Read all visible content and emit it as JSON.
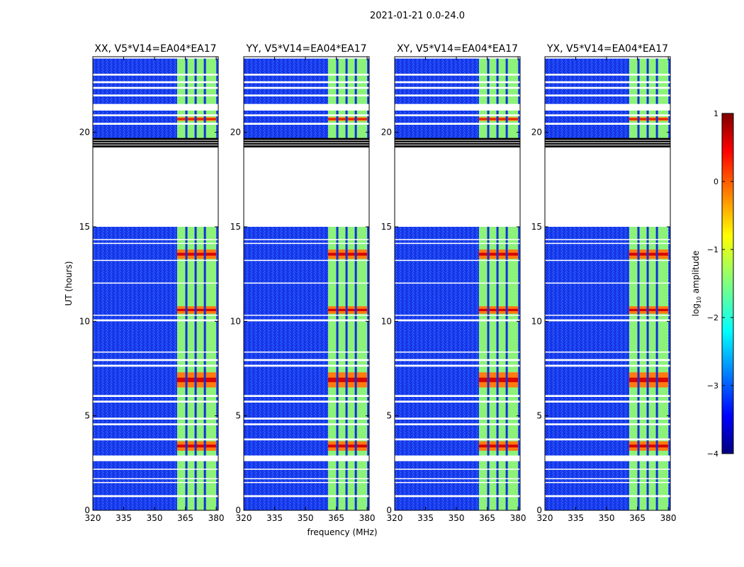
{
  "figure_title": "2021-01-21 0.0-24.0",
  "chart_data": {
    "type": "heatmap",
    "title": "2021-01-21 0.0-24.0",
    "xlabel": "frequency (MHz)",
    "ylabel": "UT (hours)",
    "xlim": [
      320,
      381
    ],
    "ylim": [
      0,
      24
    ],
    "xticks": [
      320,
      335,
      350,
      365,
      380
    ],
    "yticks": [
      0,
      5,
      10,
      15,
      20
    ],
    "panels": [
      {
        "title": "XX, V5*V14=EA04*EA17",
        "polarization": "XX"
      },
      {
        "title": "YY, V5*V14=EA04*EA17",
        "polarization": "YY"
      },
      {
        "title": "XY, V5*V14=EA04*EA17",
        "polarization": "XY"
      },
      {
        "title": "YX, V5*V14=EA04*EA17",
        "polarization": "YX"
      }
    ],
    "colorbar": {
      "label": "log10 amplitude",
      "label_main": "log",
      "label_sub": "10",
      "label_tail": " amplitude",
      "min": -4,
      "max": 1,
      "ticks": [
        1,
        0,
        -1,
        -2,
        -3,
        -4
      ],
      "tick_labels": [
        "1",
        "0",
        "−1",
        "−2",
        "−3",
        "−4"
      ],
      "colormap": "jet"
    },
    "rfi_band_mhz": [
      361,
      380
    ],
    "rfi_channel_gaps_mhz": [
      365.5,
      370,
      374.5
    ],
    "no_data_hours": [
      [
        15.0,
        19.2
      ]
    ],
    "flagged_rows_white_hours": [
      [
        0.7,
        0.8
      ],
      [
        1.45,
        1.5
      ],
      [
        1.65,
        1.7
      ],
      [
        2.15,
        2.2
      ],
      [
        2.6,
        2.9
      ],
      [
        3.7,
        3.8
      ],
      [
        4.5,
        4.6
      ],
      [
        4.8,
        4.9
      ],
      [
        5.7,
        5.8
      ],
      [
        6.0,
        6.1
      ],
      [
        7.6,
        7.7
      ],
      [
        7.9,
        8.0
      ],
      [
        8.35,
        8.4
      ],
      [
        10.0,
        10.1
      ],
      [
        10.3,
        10.35
      ],
      [
        12.0,
        12.05
      ],
      [
        13.2,
        13.25
      ],
      [
        14.1,
        14.15
      ],
      [
        14.3,
        14.35
      ],
      [
        20.4,
        20.5
      ],
      [
        20.85,
        20.95
      ],
      [
        21.15,
        21.5
      ],
      [
        21.9,
        22.0
      ],
      [
        22.3,
        22.4
      ],
      [
        22.6,
        22.7
      ],
      [
        23.0,
        23.1
      ],
      [
        23.9,
        24.0
      ]
    ],
    "flagged_rows_black_hours": [
      [
        19.2,
        19.7
      ]
    ],
    "bright_rows_hours": [
      [
        3.15,
        3.65
      ],
      [
        6.5,
        7.3
      ],
      [
        10.4,
        10.8
      ],
      [
        13.3,
        13.8
      ],
      [
        20.6,
        20.8
      ]
    ],
    "colors": {
      "background": "#ffffff",
      "axes": "#000000"
    }
  }
}
